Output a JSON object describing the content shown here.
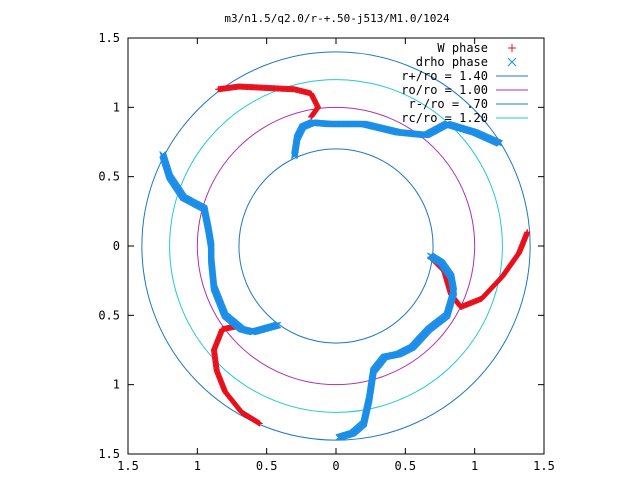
{
  "chart_data": {
    "type": "scatter",
    "title": "m3/n1.5/q2.0/r-+.50-j513/M1.0/1024",
    "xlabel": "",
    "ylabel": "",
    "xlim": [
      -1.5,
      1.5
    ],
    "ylim": [
      -1.5,
      1.5
    ],
    "x_ticks": [
      -1.5,
      -1,
      -0.5,
      0,
      0.5,
      1,
      1.5
    ],
    "y_ticks": [
      -1.5,
      -1,
      -0.5,
      0,
      0.5,
      1,
      1.5
    ],
    "x_tick_labels": [
      "1.5",
      "1",
      "0.5",
      "0",
      "0.5",
      "1",
      "1.5"
    ],
    "y_tick_labels": [
      "1.5",
      "1",
      "0.5",
      "0",
      "0.5",
      "1",
      "1.5"
    ],
    "grid": false,
    "legend_position": "top-right",
    "circles": [
      {
        "name": "r+/ro = 1.40",
        "radius": 1.4,
        "color": "#1f77c8"
      },
      {
        "name": "ro/ro = 1.00",
        "radius": 1.0,
        "color": "#b02fb0"
      },
      {
        "name": "r-/ro = .70",
        "radius": 0.7,
        "color": "#1f77c8"
      },
      {
        "name": "rc/ro = 1.20",
        "radius": 1.2,
        "color": "#22c8d8"
      }
    ],
    "series": [
      {
        "name": "W phase",
        "marker": "+",
        "color": "#e8101c",
        "arms": [
          [
            [
              -0.85,
              1.13
            ],
            [
              -0.7,
              1.15
            ],
            [
              -0.5,
              1.14
            ],
            [
              -0.3,
              1.13
            ],
            [
              -0.18,
              1.1
            ],
            [
              -0.13,
              1.0
            ],
            [
              -0.18,
              0.93
            ]
          ],
          [
            [
              0.68,
              -0.08
            ],
            [
              0.78,
              -0.18
            ],
            [
              0.83,
              -0.35
            ],
            [
              0.9,
              -0.44
            ],
            [
              1.05,
              -0.38
            ],
            [
              1.2,
              -0.22
            ],
            [
              1.32,
              -0.05
            ],
            [
              1.38,
              0.1
            ]
          ],
          [
            [
              -0.55,
              -1.28
            ],
            [
              -0.68,
              -1.2
            ],
            [
              -0.8,
              -1.05
            ],
            [
              -0.86,
              -0.9
            ],
            [
              -0.88,
              -0.75
            ],
            [
              -0.82,
              -0.6
            ],
            [
              -0.72,
              -0.58
            ]
          ]
        ]
      },
      {
        "name": "drho phase",
        "marker": "x",
        "color": "#1c8ee8",
        "arms": [
          [
            [
              -0.3,
              0.65
            ],
            [
              -0.28,
              0.78
            ],
            [
              -0.24,
              0.86
            ],
            [
              -0.17,
              0.89
            ],
            [
              -0.05,
              0.88
            ],
            [
              0.2,
              0.88
            ],
            [
              0.45,
              0.82
            ],
            [
              0.65,
              0.8
            ],
            [
              0.8,
              0.88
            ],
            [
              1.0,
              0.82
            ],
            [
              1.18,
              0.74
            ]
          ],
          [
            [
              -1.25,
              0.66
            ],
            [
              -1.2,
              0.5
            ],
            [
              -1.1,
              0.35
            ],
            [
              -0.95,
              0.27
            ],
            [
              -0.92,
              0.12
            ],
            [
              -0.9,
              0.0
            ],
            [
              -0.9,
              -0.1
            ],
            [
              -0.88,
              -0.3
            ],
            [
              -0.8,
              -0.5
            ],
            [
              -0.68,
              -0.6
            ],
            [
              -0.6,
              -0.62
            ],
            [
              -0.42,
              -0.57
            ]
          ],
          [
            [
              0.68,
              -0.07
            ],
            [
              0.76,
              -0.12
            ],
            [
              0.83,
              -0.22
            ],
            [
              0.85,
              -0.33
            ],
            [
              0.8,
              -0.5
            ],
            [
              0.67,
              -0.6
            ],
            [
              0.55,
              -0.73
            ],
            [
              0.45,
              -0.78
            ],
            [
              0.35,
              -0.8
            ],
            [
              0.27,
              -0.9
            ],
            [
              0.24,
              -1.1
            ],
            [
              0.2,
              -1.28
            ],
            [
              0.12,
              -1.35
            ],
            [
              0.02,
              -1.38
            ]
          ]
        ]
      }
    ]
  }
}
